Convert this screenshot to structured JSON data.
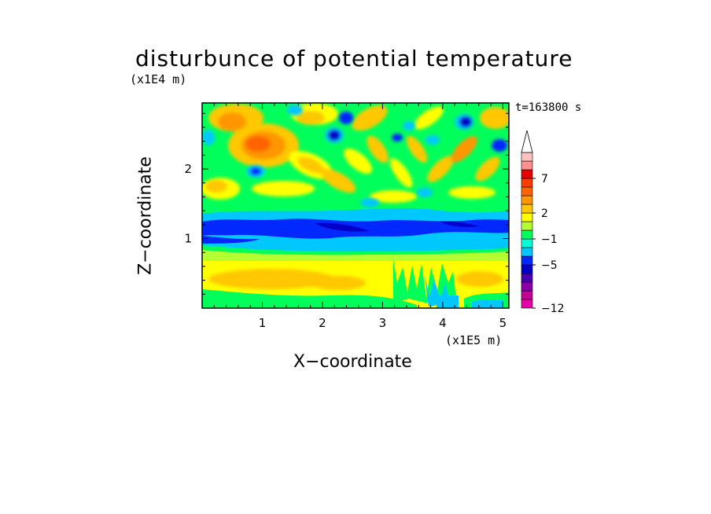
{
  "chart_data": {
    "type": "heatmap",
    "title": "disturbunce of potential temperature",
    "time_label": "t=163800 s",
    "xlabel": "X−coordinate",
    "ylabel": "Z−coordinate",
    "x_scale_label": "(x1E5 m)",
    "y_scale_label": "(x1E4 m)",
    "xlim": [
      0,
      5.1
    ],
    "ylim": [
      0,
      2.95
    ],
    "x_ticks": [
      "1",
      "2",
      "3",
      "4",
      "5"
    ],
    "y_ticks": [
      "1",
      "2"
    ],
    "colorbar": {
      "labels": [
        "−12",
        "−5",
        "−1",
        "2",
        "7"
      ],
      "colors": [
        "#e600aa",
        "#c40096",
        "#8a00a8",
        "#4b00b0",
        "#0000c8",
        "#0028ff",
        "#00c8ff",
        "#00ffd2",
        "#00ff5a",
        "#b4ff32",
        "#ffff00",
        "#ffc800",
        "#ff9600",
        "#ff6400",
        "#ff3c00",
        "#e60000",
        "#ff9090",
        "#ffc0c0"
      ],
      "extend": "max"
    }
  }
}
